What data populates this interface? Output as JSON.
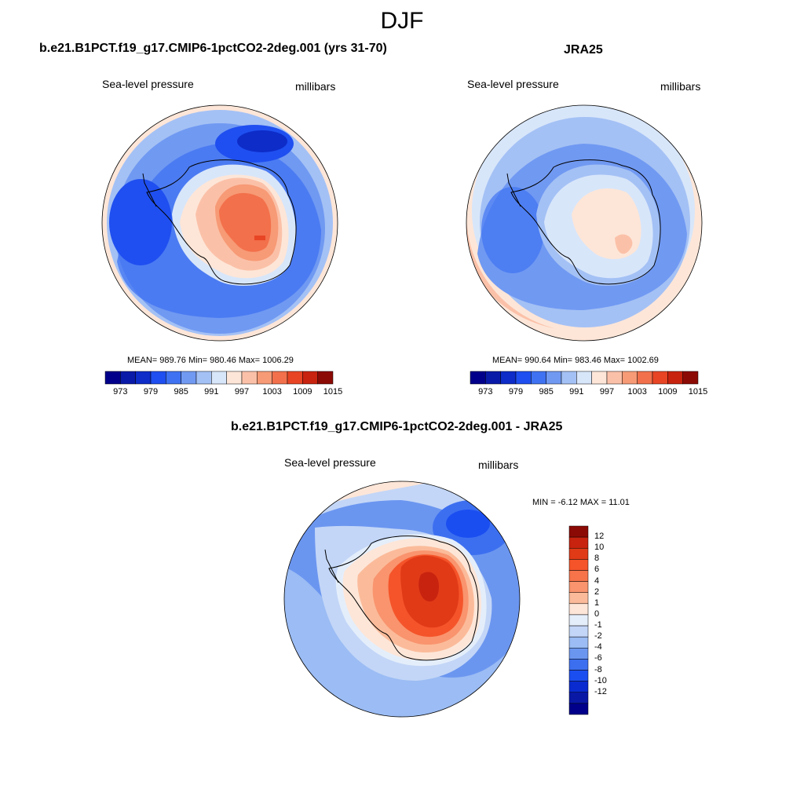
{
  "season": "DJF",
  "panels": [
    {
      "title": "b.e21.B1PCT.f19_g17.CMIP6-1pctCO2-2deg.001 (yrs 31-70)",
      "variable": "Sea-level pressure",
      "units": "millibars",
      "stats": "MEAN= 989.76  Min= 980.46  Max= 1006.29"
    },
    {
      "title": "JRA25",
      "variable": "Sea-level pressure",
      "units": "millibars",
      "stats": "MEAN= 990.64  Min= 983.46  Max= 1002.69"
    },
    {
      "title": "b.e21.B1PCT.f19_g17.CMIP6-1pctCO2-2deg.001 - JRA25",
      "variable": "Sea-level pressure",
      "units": "millibars",
      "stats": "MIN =  -6.12 MAX =  11.01"
    }
  ],
  "abs_colorbar": {
    "colors": [
      "#00008b",
      "#0a1aa8",
      "#0d2cc8",
      "#1f4ff0",
      "#3f72f2",
      "#7099f2",
      "#a4c1f5",
      "#d8e6fa",
      "#fde6d8",
      "#fbc1a8",
      "#f79a76",
      "#f2704b",
      "#e84524",
      "#c8230f",
      "#8c0a05"
    ],
    "tick_labels": [
      "973",
      "979",
      "985",
      "991",
      "997",
      "1003",
      "1009",
      "1015"
    ]
  },
  "diff_colorbar": {
    "colors_top_to_bottom": [
      "#8c0a05",
      "#c8230f",
      "#e03a17",
      "#f5542a",
      "#f7744a",
      "#f9946e",
      "#fbbb9a",
      "#fde6d8",
      "#e4eefb",
      "#c3d6f7",
      "#9bbcf4",
      "#6b96f0",
      "#3c6ff0",
      "#1b4ef0",
      "#0a2bd0",
      "#0a18a6",
      "#00008b"
    ],
    "tick_labels": [
      "12",
      "10",
      "8",
      "6",
      "4",
      "2",
      "1",
      "0",
      "-1",
      "-2",
      "-4",
      "-6",
      "-8",
      "-10",
      "-12"
    ]
  }
}
